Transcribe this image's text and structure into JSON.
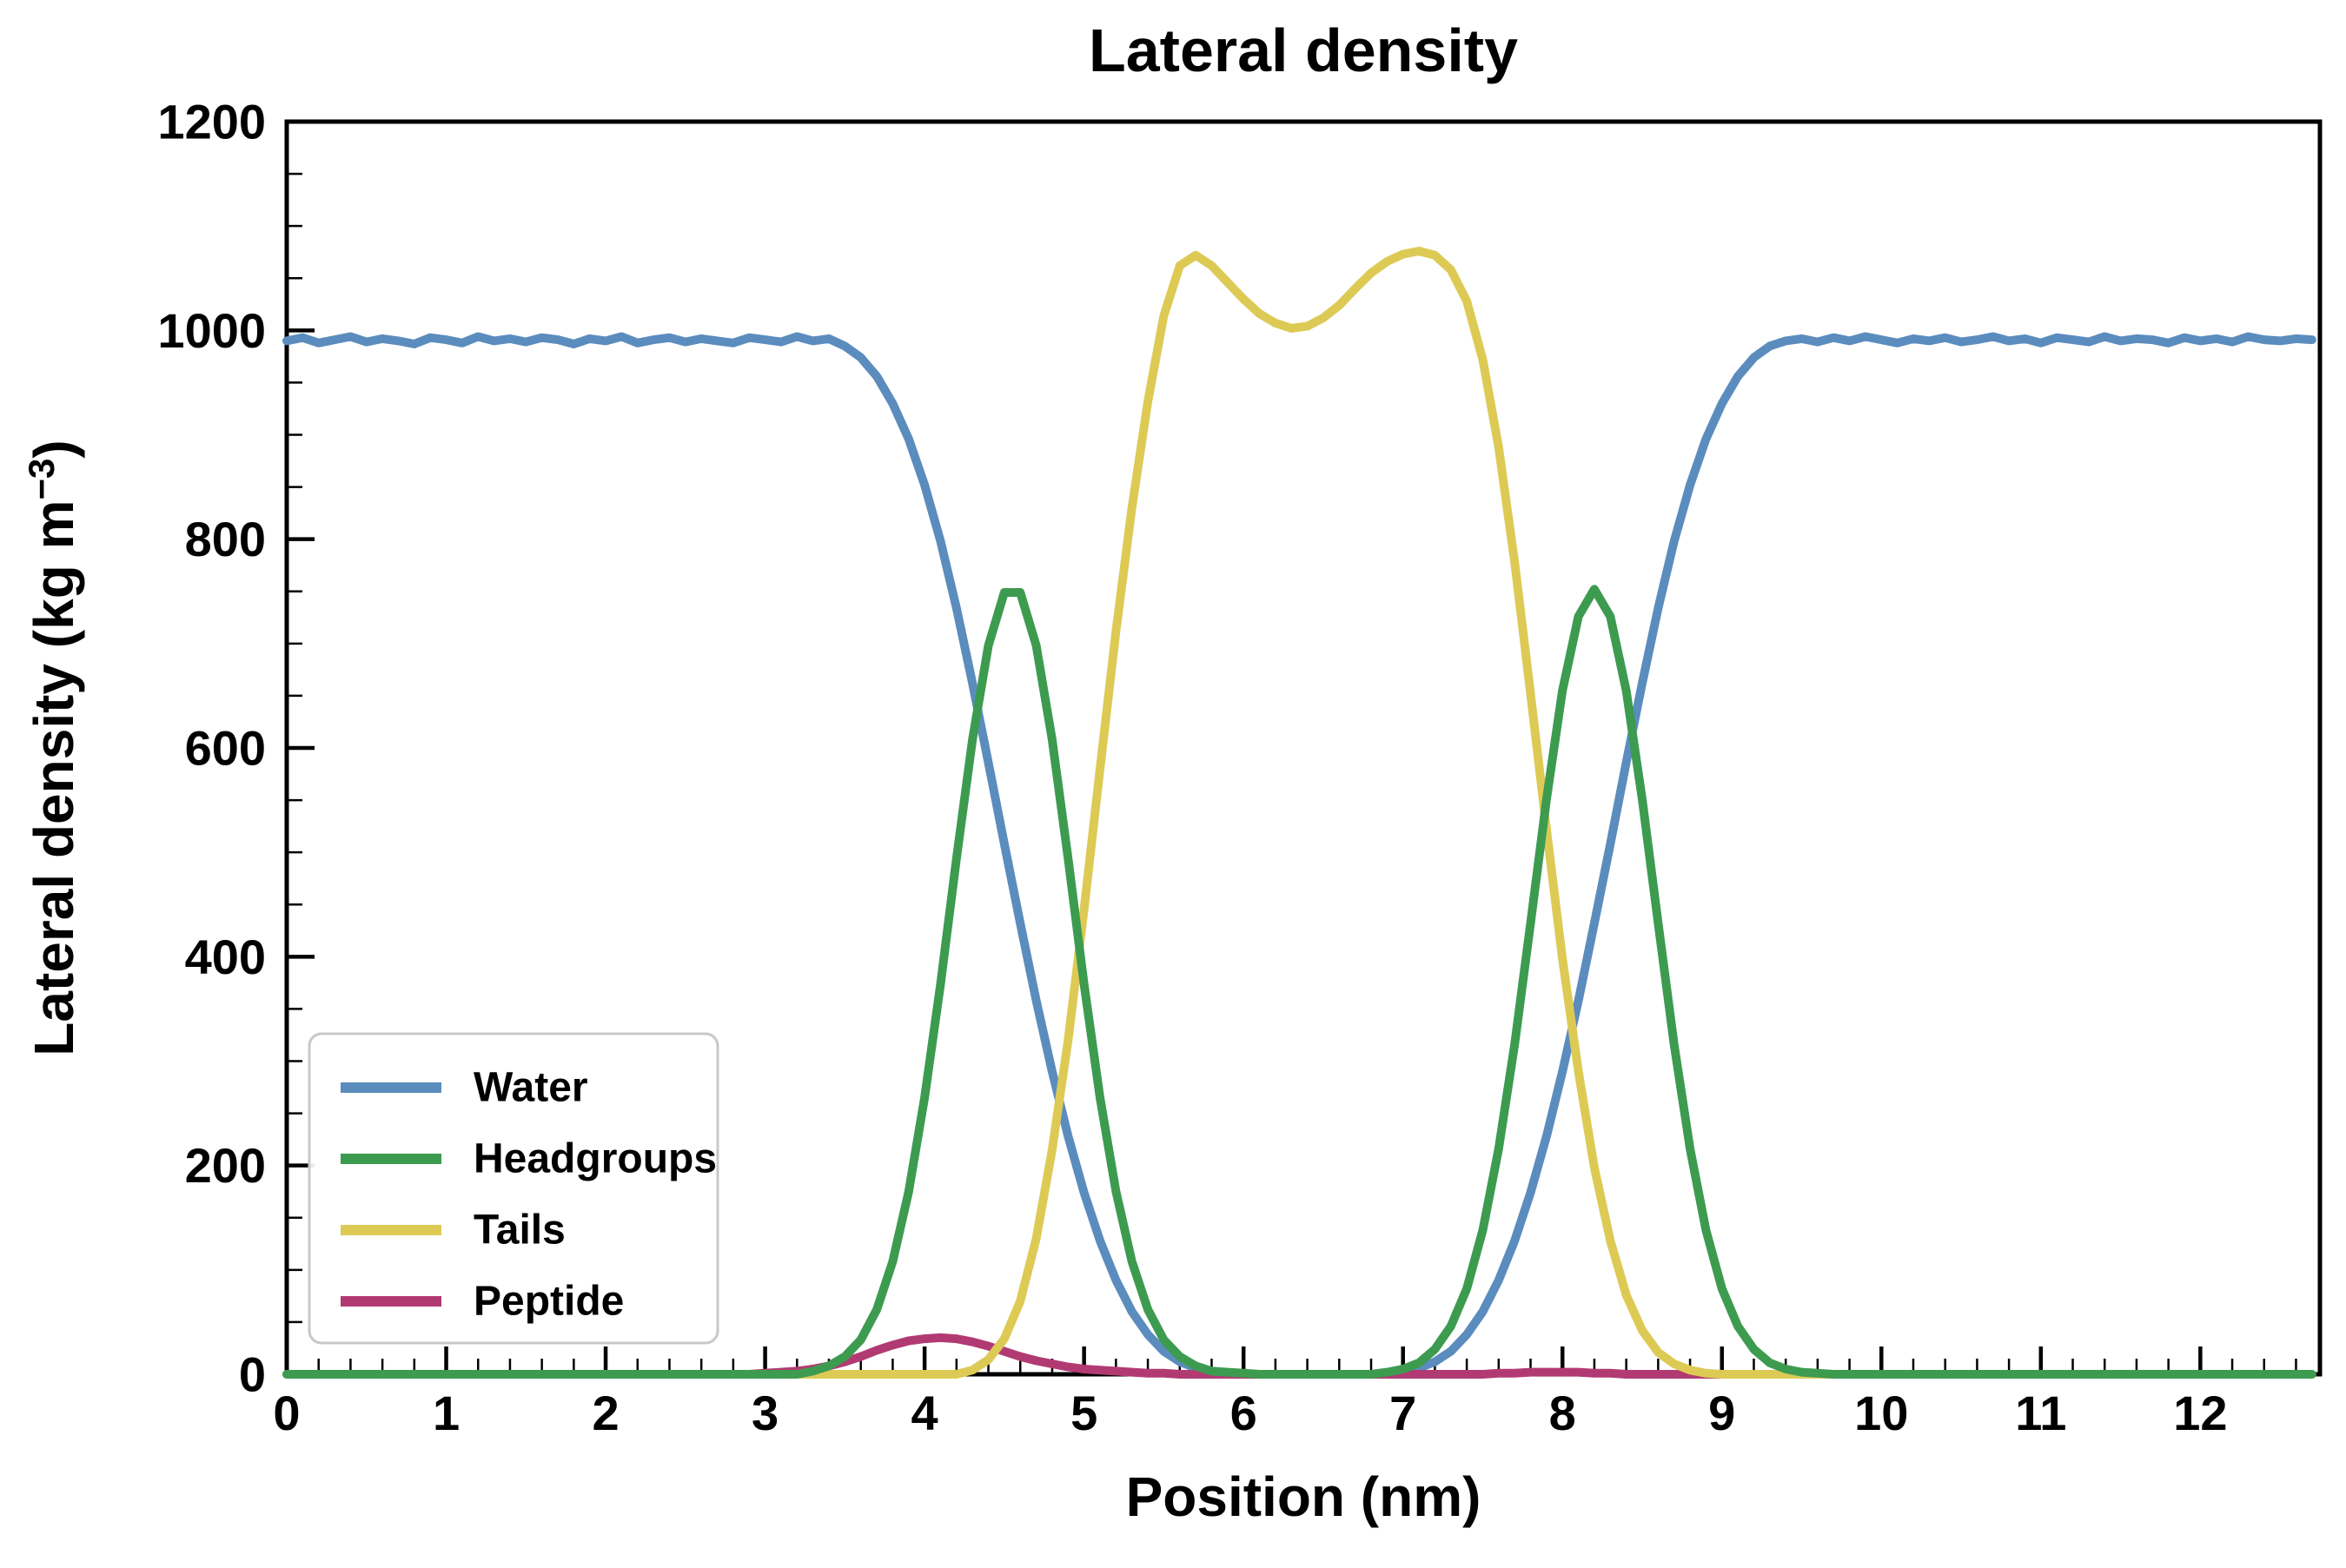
{
  "figure": {
    "ylabel_pre": "Lateral density (kg m",
    "ylabel_sup": "−3",
    "ylabel_post": ")"
  },
  "chart_data": {
    "type": "line",
    "title": "Lateral density",
    "xlabel": "Position (nm)",
    "ylabel": "Lateral density (kg m⁻³)",
    "xlim": [
      0,
      12.75
    ],
    "ylim": [
      0,
      1200
    ],
    "x_ticks": [
      0,
      1,
      2,
      3,
      4,
      5,
      6,
      7,
      8,
      9,
      10,
      11,
      12
    ],
    "y_ticks": [
      0,
      200,
      400,
      600,
      800,
      1000,
      1200
    ],
    "x_minor_step": 0.2,
    "y_minor_step": 50,
    "grid": false,
    "legend_position": "lower-left",
    "frame_color": "#000000",
    "background": "#ffffff",
    "line_width": 10,
    "x": {
      "start": 0,
      "step": 0.1,
      "count": 128
    },
    "series": [
      {
        "name": "Water",
        "color": "#5b8cbe",
        "values": [
          990,
          993,
          988,
          991,
          994,
          989,
          992,
          990,
          987,
          993,
          991,
          988,
          994,
          990,
          992,
          989,
          993,
          991,
          987,
          992,
          990,
          994,
          988,
          991,
          993,
          989,
          992,
          990,
          988,
          993,
          991,
          989,
          994,
          990,
          992,
          985,
          974,
          956,
          930,
          896,
          852,
          798,
          734,
          662,
          586,
          508,
          432,
          358,
          290,
          228,
          174,
          128,
          90,
          60,
          38,
          22,
          12,
          6,
          3,
          1,
          0,
          0,
          0,
          0,
          0,
          0,
          0,
          0,
          0,
          1,
          3,
          6,
          12,
          22,
          38,
          60,
          90,
          128,
          174,
          228,
          290,
          358,
          432,
          508,
          586,
          662,
          734,
          798,
          852,
          896,
          930,
          956,
          974,
          985,
          990,
          992,
          989,
          993,
          990,
          994,
          991,
          988,
          992,
          990,
          993,
          989,
          991,
          994,
          990,
          992,
          988,
          993,
          991,
          989,
          994,
          990,
          992,
          991,
          988,
          993,
          990,
          992,
          989,
          994,
          991,
          990,
          992,
          991
        ]
      },
      {
        "name": "Headgroups",
        "color": "#3d9b50",
        "values": [
          0,
          0,
          0,
          0,
          0,
          0,
          0,
          0,
          0,
          0,
          0,
          0,
          0,
          0,
          0,
          0,
          0,
          0,
          0,
          0,
          0,
          0,
          0,
          0,
          0,
          0,
          0,
          0,
          0,
          0,
          0,
          0,
          0,
          3,
          8,
          17,
          33,
          62,
          108,
          175,
          265,
          374,
          494,
          608,
          698,
          749,
          749,
          698,
          608,
          494,
          374,
          265,
          175,
          108,
          62,
          33,
          17,
          8,
          3,
          2,
          1,
          0,
          0,
          0,
          0,
          0,
          0,
          0,
          0,
          2,
          5,
          11,
          24,
          46,
          82,
          138,
          216,
          316,
          432,
          551,
          655,
          726,
          752,
          726,
          655,
          551,
          432,
          316,
          216,
          138,
          82,
          46,
          24,
          11,
          5,
          2,
          1,
          0,
          0,
          0,
          0,
          0,
          0,
          0,
          0,
          0,
          0,
          0,
          0,
          0,
          0,
          0,
          0,
          0,
          0,
          0,
          0,
          0,
          0,
          0,
          0,
          0,
          0,
          0,
          0,
          0,
          0,
          0
        ]
      },
      {
        "name": "Tails",
        "color": "#ddca55",
        "values": [
          0,
          0,
          0,
          0,
          0,
          0,
          0,
          0,
          0,
          0,
          0,
          0,
          0,
          0,
          0,
          0,
          0,
          0,
          0,
          0,
          0,
          0,
          0,
          0,
          0,
          0,
          0,
          0,
          0,
          0,
          0,
          0,
          0,
          0,
          0,
          0,
          0,
          0,
          0,
          0,
          0,
          0,
          0,
          4,
          14,
          34,
          70,
          130,
          215,
          320,
          445,
          580,
          712,
          830,
          932,
          1014,
          1062,
          1072,
          1062,
          1046,
          1030,
          1016,
          1007,
          1002,
          1004,
          1012,
          1024,
          1040,
          1055,
          1066,
          1073,
          1076,
          1072,
          1058,
          1028,
          972,
          888,
          778,
          652,
          522,
          398,
          290,
          198,
          128,
          76,
          42,
          21,
          10,
          4,
          1,
          0,
          0,
          0,
          0,
          0,
          0,
          0,
          0,
          0,
          0,
          0,
          0,
          0,
          0,
          0,
          0,
          0,
          0,
          0,
          0,
          0,
          0,
          0,
          0,
          0,
          0,
          0,
          0,
          0,
          0,
          0,
          0,
          0,
          0,
          0,
          0,
          0,
          0
        ]
      },
      {
        "name": "Peptide",
        "color": "#b23a73",
        "values": [
          0,
          0,
          0,
          0,
          0,
          0,
          0,
          0,
          0,
          0,
          0,
          0,
          0,
          0,
          0,
          0,
          0,
          0,
          0,
          0,
          0,
          0,
          0,
          0,
          0,
          0,
          0,
          0,
          0,
          0,
          1,
          2,
          3,
          5,
          8,
          12,
          17,
          23,
          28,
          32,
          34,
          35,
          34,
          31,
          27,
          22,
          17,
          13,
          10,
          7,
          5,
          4,
          3,
          2,
          1,
          1,
          0,
          0,
          0,
          0,
          0,
          0,
          0,
          0,
          0,
          0,
          0,
          0,
          0,
          0,
          0,
          0,
          0,
          0,
          0,
          0,
          1,
          1,
          2,
          2,
          2,
          2,
          1,
          1,
          0,
          0,
          0,
          0,
          0,
          0,
          0,
          0,
          0,
          0,
          0,
          0,
          0,
          0,
          0,
          0,
          0,
          0,
          0,
          0,
          0,
          0,
          0,
          0,
          0,
          0,
          0,
          0,
          0,
          0,
          0,
          0,
          0,
          0,
          0,
          0,
          0,
          0,
          0,
          0,
          0,
          0,
          0,
          0
        ]
      }
    ]
  }
}
